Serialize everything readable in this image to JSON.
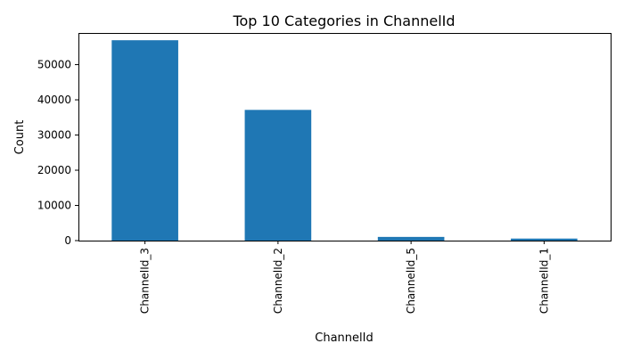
{
  "chart_data": {
    "type": "bar",
    "title": "Top 10 Categories in ChannelId",
    "xlabel": "ChannelId",
    "ylabel": "Count",
    "categories": [
      "ChannelId_3",
      "ChannelId_2",
      "ChannelId_5",
      "ChannelId_1"
    ],
    "values": [
      56935,
      37141,
      1048,
      574
    ],
    "ylim": [
      0,
      59000
    ],
    "yticks": [
      0,
      10000,
      20000,
      30000,
      40000,
      50000
    ],
    "ytick_labels": [
      "0",
      "10000",
      "20000",
      "30000",
      "40000",
      "50000"
    ],
    "grid": false,
    "legend": "none",
    "bar_color": "#1f77b4",
    "axis_color": "#000000"
  }
}
